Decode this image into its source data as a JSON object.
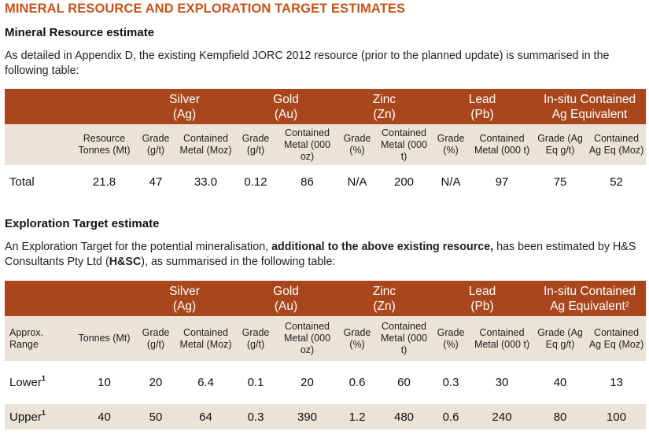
{
  "title": "MINERAL RESOURCE AND EXPLORATION TARGET ESTIMATES",
  "resource": {
    "heading": "Mineral Resource estimate",
    "paragraph": "As detailed in Appendix D, the existing Kempfield JORC 2012 resource (prior to the planned update) is summarised in the following table:",
    "groups": [
      {
        "name": "Silver",
        "symbol": "(Ag)"
      },
      {
        "name": "Gold",
        "symbol": "(Au)"
      },
      {
        "name": "Zinc",
        "symbol": "(Zn)"
      },
      {
        "name": "Lead",
        "symbol": "(Pb)"
      },
      {
        "name": "In-situ Contained",
        "symbol": "Ag Equivalent"
      }
    ],
    "headers": [
      "",
      "Resource Tonnes (Mt)",
      "Grade (g/t)",
      "Contained Metal (Moz)",
      "Grade (g/t)",
      "Contained Metal (000 oz)",
      "Grade (%)",
      "Contained Metal (000 t)",
      "Grade (%)",
      "Contained Metal (000 t)",
      "Grade (Ag Eq g/t)",
      "Contained Ag Eq (Moz)"
    ],
    "row": [
      "Total",
      "21.8",
      "47",
      "33.0",
      "0.12",
      "86",
      "N/A",
      "200",
      "N/A",
      "97",
      "75",
      "52"
    ]
  },
  "exploration": {
    "heading": "Exploration Target estimate",
    "paragraph_start": "An Exploration Target for the potential mineralisation,",
    "paragraph_bold": "additional to the above existing resource,",
    "paragraph_mid": "has been estimated by H&S Consultants Pty Ltd (",
    "paragraph_bold2": "H&SC",
    "paragraph_end": "), as summarised in the following table:",
    "groups": [
      {
        "name": "Silver",
        "symbol": "(Ag)"
      },
      {
        "name": "Gold",
        "symbol": "(Au)"
      },
      {
        "name": "Zinc",
        "symbol": "(Zn)"
      },
      {
        "name": "Lead",
        "symbol": "(Pb)"
      },
      {
        "name": "In-situ Contained",
        "symbol": "Ag Equivalent",
        "footnote": "2"
      }
    ],
    "headers": [
      "Approx. Range",
      "Tonnes (Mt)",
      "Grade (g/t)",
      "Contained Metal (Moz)",
      "Grade (g/t)",
      "Contained Metal (000 oz)",
      "Grade (%)",
      "Contained Metal (000 t)",
      "Grade (%)",
      "Contained Metal (000 t)",
      "Grade (Ag Eq g/t)",
      "Contained Ag Eq (Moz)"
    ],
    "rows": [
      {
        "label": "Lower",
        "footnote": "1",
        "values": [
          "10",
          "20",
          "6.4",
          "0.1",
          "20",
          "0.6",
          "60",
          "0.3",
          "30",
          "40",
          "13"
        ]
      },
      {
        "label": "Upper",
        "footnote": "1",
        "values": [
          "40",
          "50",
          "64",
          "0.3",
          "390",
          "1.2",
          "480",
          "0.6",
          "240",
          "80",
          "100"
        ]
      }
    ]
  },
  "colors": {
    "heading": "#c8531a",
    "table_header": "#a9461c",
    "shade": "#eae3d6"
  }
}
